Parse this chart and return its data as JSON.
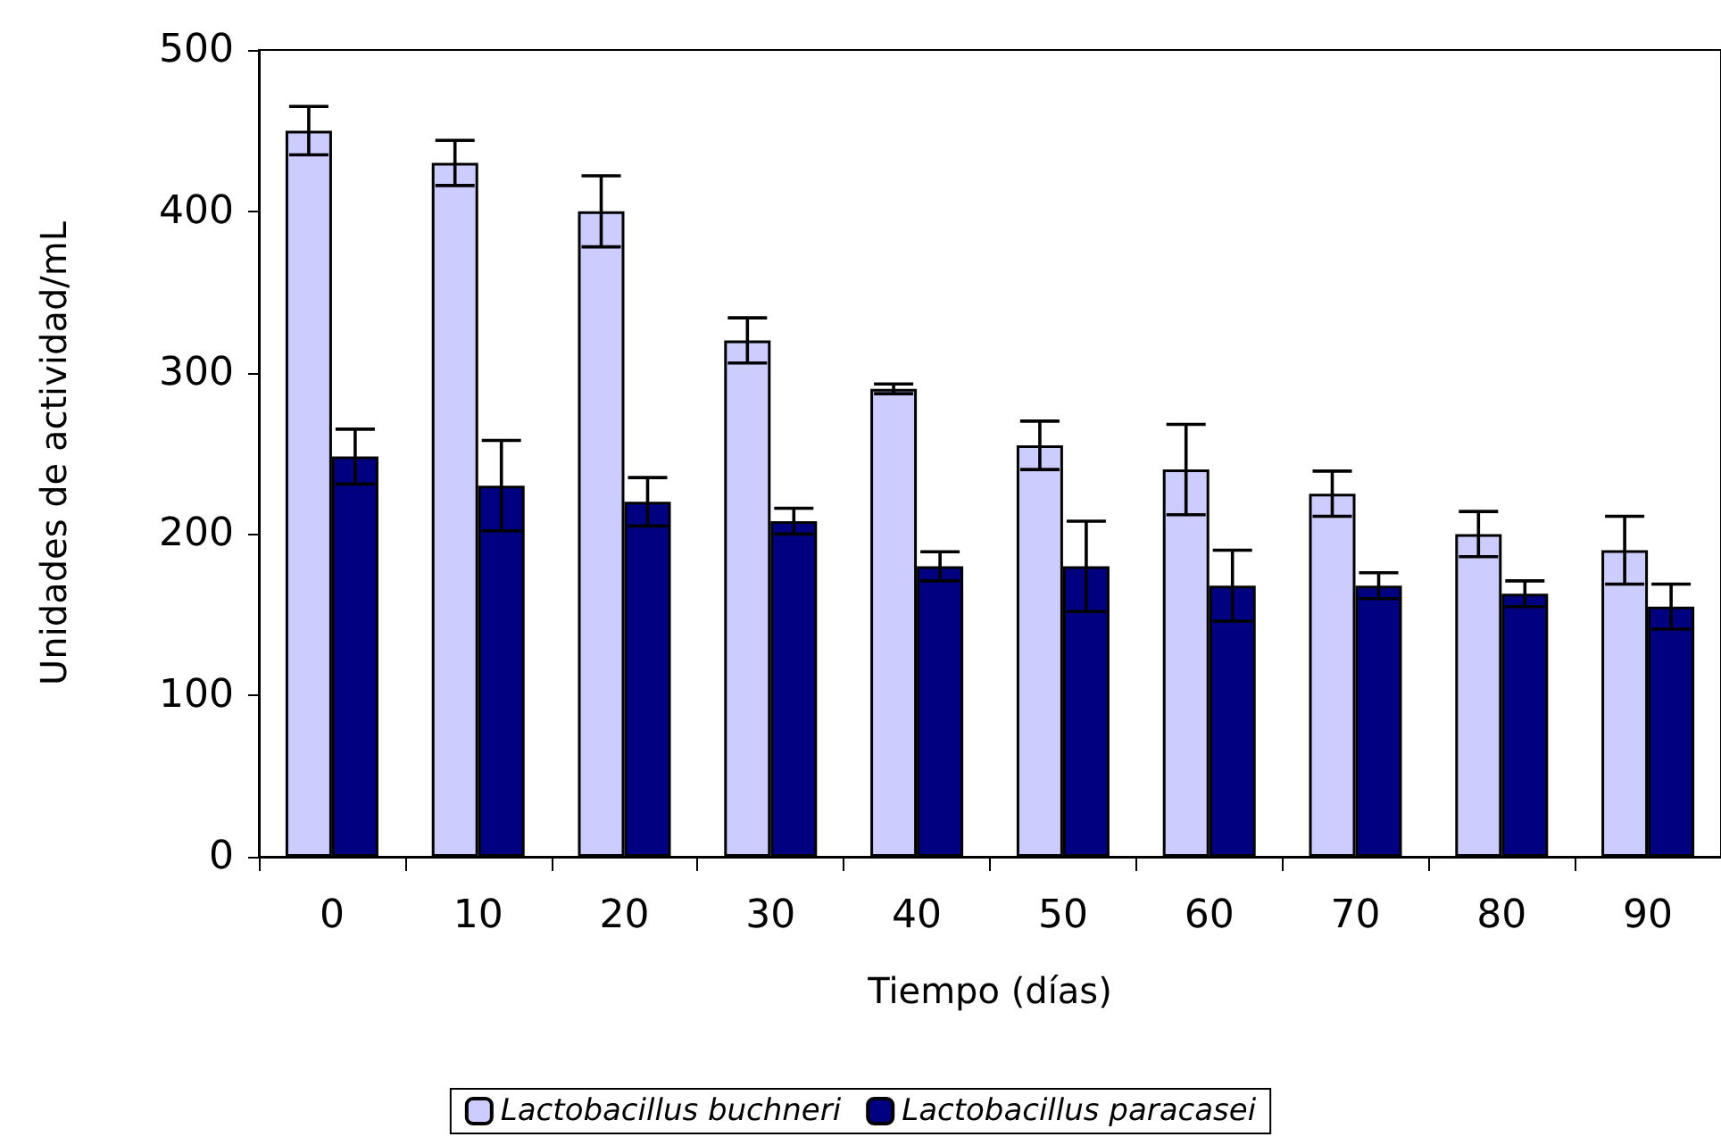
{
  "chart_data": {
    "type": "bar",
    "xlabel": "Tiempo (días)",
    "ylabel": "Unidades de actividad/mL",
    "categories": [
      "0",
      "10",
      "20",
      "30",
      "40",
      "50",
      "60",
      "70",
      "80",
      "90"
    ],
    "series": [
      {
        "name": "Lactobacillus buchneri",
        "color": "#ccccff",
        "values": [
          450,
          430,
          400,
          320,
          290,
          255,
          240,
          225,
          200,
          190
        ],
        "errors": [
          15,
          14,
          22,
          14,
          3,
          15,
          28,
          14,
          14,
          21
        ]
      },
      {
        "name": "Lactobacillus paracasei",
        "color": "#000080",
        "values": [
          248,
          230,
          220,
          208,
          180,
          180,
          168,
          168,
          163,
          155
        ],
        "errors": [
          17,
          28,
          15,
          8,
          9,
          28,
          22,
          8,
          8,
          14
        ]
      }
    ],
    "ylim": [
      0,
      500
    ],
    "yticks": [
      0,
      100,
      200,
      300,
      400,
      500
    ],
    "grid": false,
    "legend": "bottom"
  }
}
